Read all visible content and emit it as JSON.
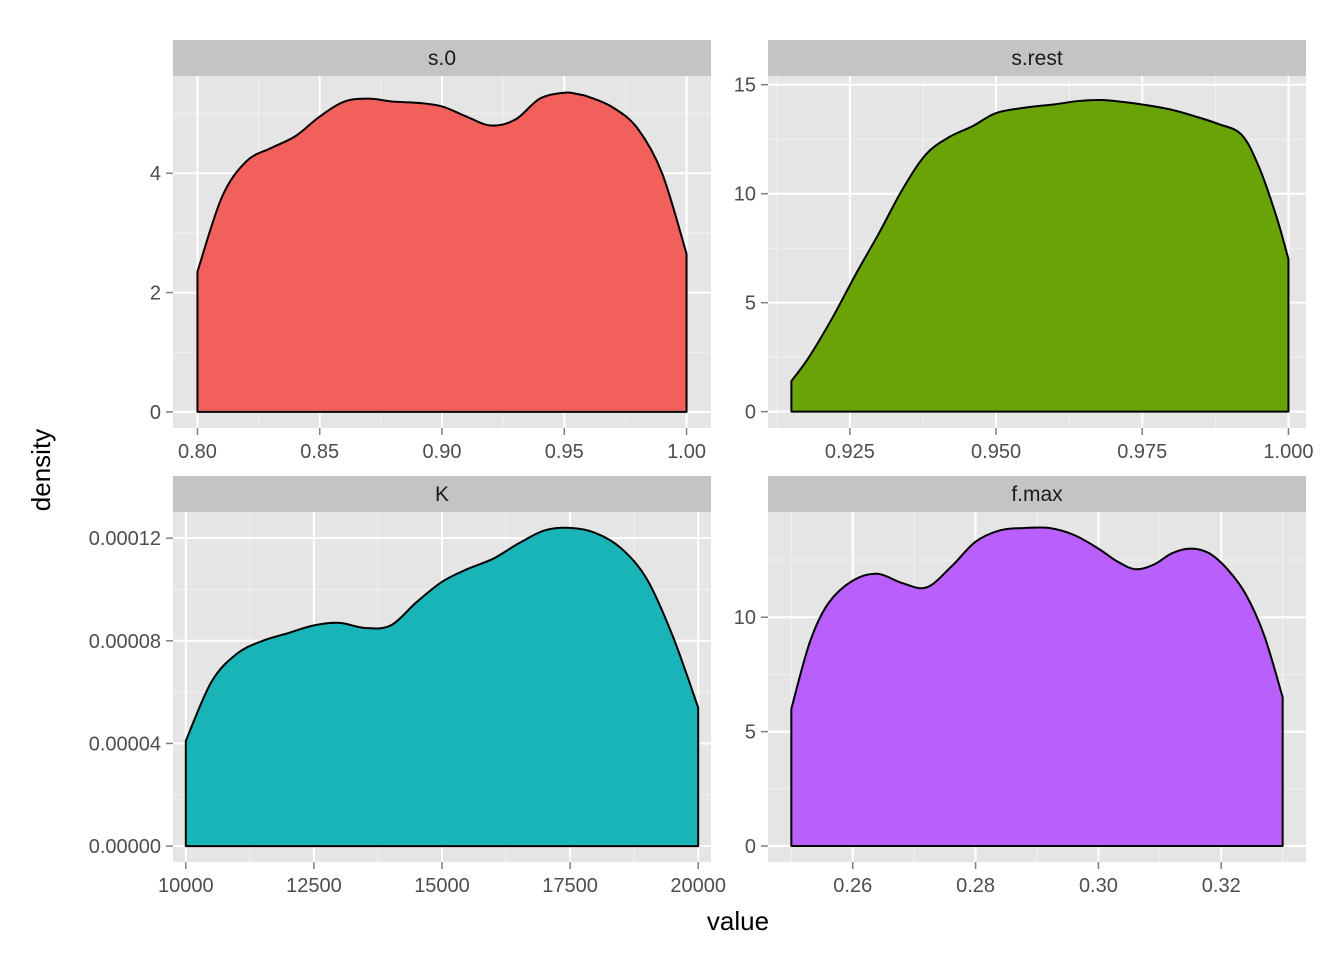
{
  "chart_data": {
    "type": "area",
    "kind": "faceted density plot",
    "xlabel": "value",
    "ylabel": "density",
    "grid": true,
    "legend": "none",
    "panels": [
      {
        "name": "s.0",
        "fill": "#F2605C",
        "xlim": [
          0.79,
          1.01
        ],
        "ylim": [
          -0.27,
          5.63
        ],
        "x_ticks": [
          0.8,
          0.85,
          0.9,
          0.95,
          1.0
        ],
        "x_tick_labels": [
          "0.80",
          "0.85",
          "0.90",
          "0.95",
          "1.00"
        ],
        "y_ticks": [
          0,
          2,
          4
        ],
        "y_tick_labels": [
          "0",
          "2",
          "4"
        ],
        "x": [
          0.8,
          0.81,
          0.82,
          0.83,
          0.84,
          0.85,
          0.86,
          0.87,
          0.88,
          0.89,
          0.9,
          0.91,
          0.92,
          0.93,
          0.94,
          0.95,
          0.955,
          0.96,
          0.97,
          0.98,
          0.99,
          1.0
        ],
        "y": [
          2.35,
          3.6,
          4.2,
          4.42,
          4.62,
          4.95,
          5.2,
          5.25,
          5.2,
          5.18,
          5.12,
          4.95,
          4.8,
          4.9,
          5.25,
          5.35,
          5.33,
          5.28,
          5.1,
          4.75,
          4.0,
          2.65
        ]
      },
      {
        "name": "s.rest",
        "fill": "#6AA305",
        "xlim": [
          0.911,
          1.003
        ],
        "ylim": [
          -0.75,
          15.4
        ],
        "x_ticks": [
          0.925,
          0.95,
          0.975,
          1.0
        ],
        "x_tick_labels": [
          "0.925",
          "0.950",
          "0.975",
          "1.000"
        ],
        "y_ticks": [
          0,
          5,
          10,
          15
        ],
        "y_tick_labels": [
          "0",
          "5",
          "10",
          "15"
        ],
        "x": [
          0.915,
          0.918,
          0.922,
          0.926,
          0.93,
          0.934,
          0.938,
          0.942,
          0.946,
          0.95,
          0.955,
          0.96,
          0.964,
          0.968,
          0.972,
          0.976,
          0.98,
          0.984,
          0.988,
          0.992,
          0.995,
          0.998,
          1.0
        ],
        "y": [
          1.4,
          2.5,
          4.3,
          6.3,
          8.2,
          10.2,
          11.8,
          12.6,
          13.1,
          13.7,
          13.95,
          14.1,
          14.25,
          14.3,
          14.2,
          14.05,
          13.85,
          13.55,
          13.2,
          12.7,
          11.2,
          8.9,
          7.0
        ]
      },
      {
        "name": "K",
        "fill": "#19B4B8",
        "xlim": [
          9750,
          20250
        ],
        "ylim": [
          -6.2e-06,
          0.0001302
        ],
        "x_ticks": [
          10000,
          12500,
          15000,
          17500,
          20000
        ],
        "x_tick_labels": [
          "10000",
          "12500",
          "15000",
          "17500",
          "20000"
        ],
        "y_ticks": [
          0,
          4e-05,
          8e-05,
          0.00012
        ],
        "y_tick_labels": [
          "0.00000",
          "0.00004",
          "0.00008",
          "0.00012"
        ],
        "x": [
          10000,
          10500,
          11000,
          11500,
          12000,
          12500,
          13000,
          13500,
          14000,
          14500,
          15000,
          15500,
          16000,
          16500,
          17000,
          17500,
          18000,
          18500,
          19000,
          19500,
          20000
        ],
        "y": [
          4.1e-05,
          6.4e-05,
          7.5e-05,
          8e-05,
          8.3e-05,
          8.6e-05,
          8.7e-05,
          8.5e-05,
          8.6e-05,
          9.5e-05,
          0.000103,
          0.000108,
          0.000112,
          0.000118,
          0.000123,
          0.000124,
          0.000122,
          0.000116,
          0.000104,
          8.2e-05,
          5.4e-05
        ]
      },
      {
        "name": "f.max",
        "fill": "#B95FFC",
        "xlim": [
          0.2462,
          0.3338
        ],
        "ylim": [
          -0.7,
          14.6
        ],
        "x_ticks": [
          0.26,
          0.28,
          0.3,
          0.32
        ],
        "x_tick_labels": [
          "0.26",
          "0.28",
          "0.30",
          "0.32"
        ],
        "y_ticks": [
          0,
          5,
          10
        ],
        "y_tick_labels": [
          "0",
          "5",
          "10"
        ],
        "x": [
          0.25,
          0.253,
          0.256,
          0.26,
          0.264,
          0.268,
          0.272,
          0.276,
          0.28,
          0.284,
          0.288,
          0.292,
          0.296,
          0.3,
          0.303,
          0.306,
          0.309,
          0.312,
          0.315,
          0.318,
          0.321,
          0.324,
          0.327,
          0.33
        ],
        "y": [
          6.0,
          8.9,
          10.6,
          11.6,
          11.9,
          11.5,
          11.3,
          12.2,
          13.3,
          13.8,
          13.9,
          13.9,
          13.6,
          13.0,
          12.45,
          12.1,
          12.3,
          12.8,
          13.0,
          12.8,
          12.1,
          11.0,
          9.2,
          6.5
        ]
      }
    ]
  }
}
